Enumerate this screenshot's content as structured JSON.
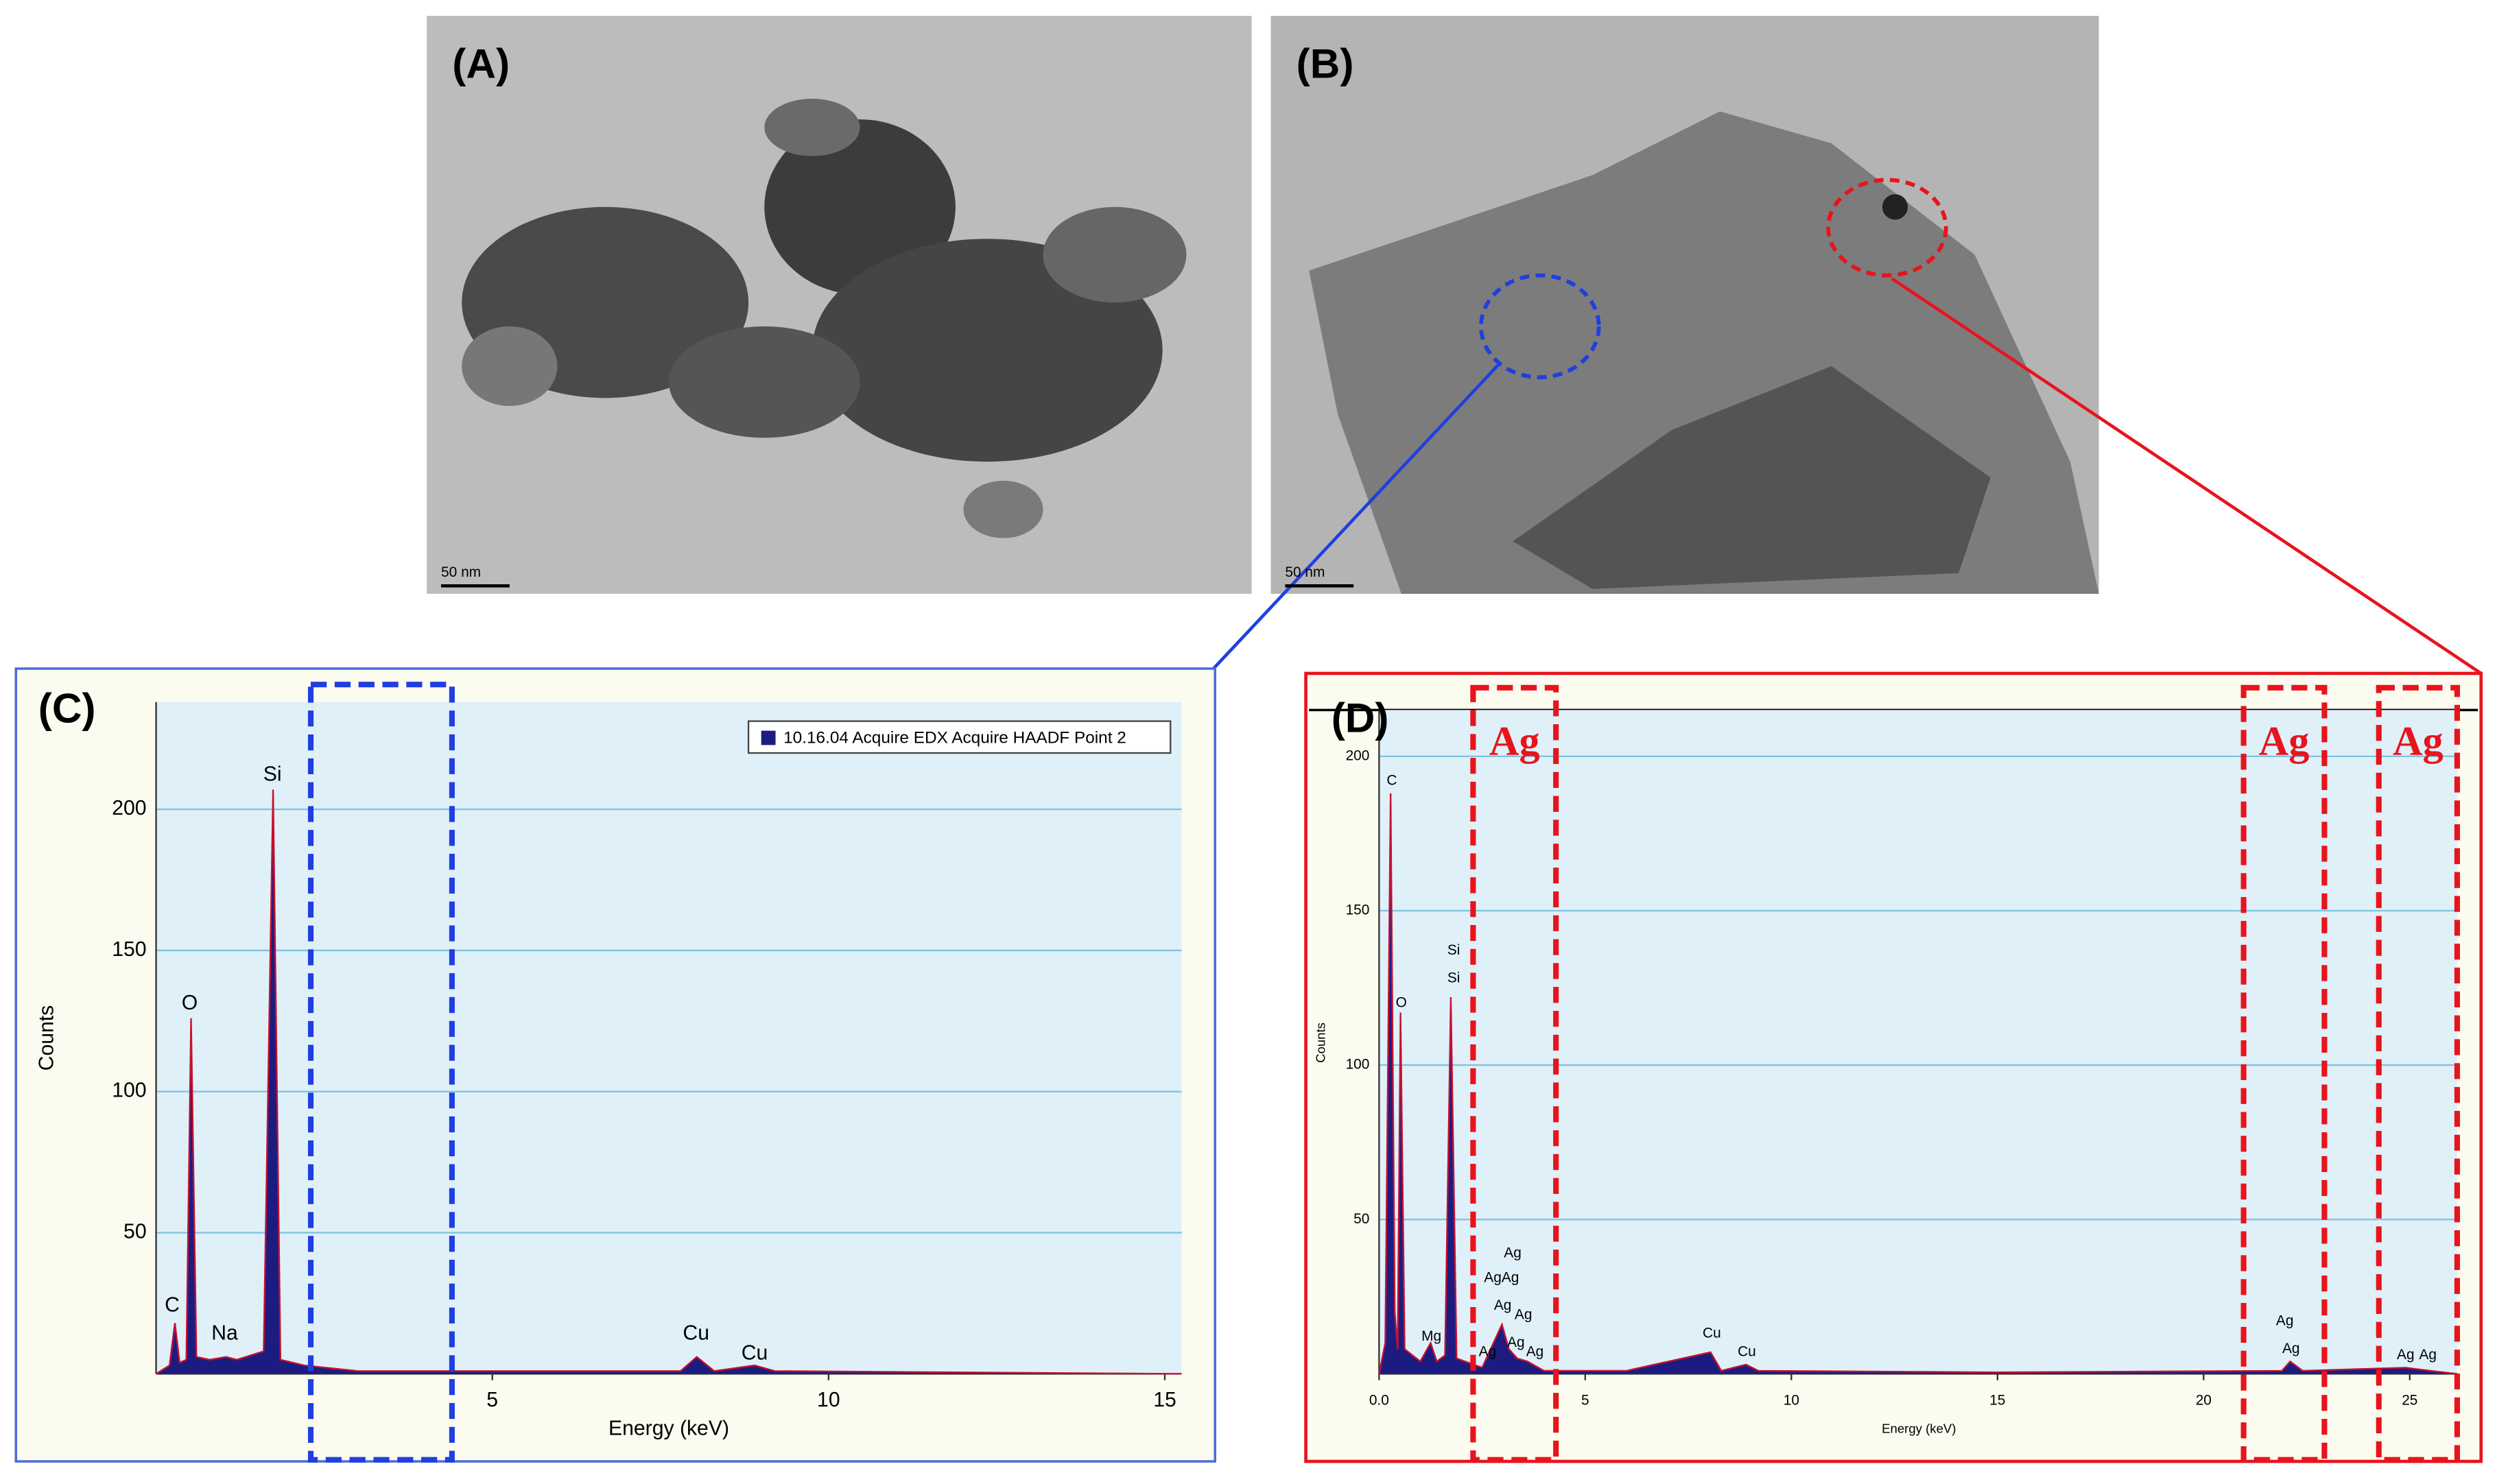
{
  "images": [
    {
      "label": "(A)",
      "scale_bar": "50 nm"
    },
    {
      "label": "(B)",
      "scale_bar": "50 nm"
    }
  ],
  "chart_data": [
    {
      "type": "line",
      "panel": "(C)",
      "x_label": "Energy (keV)",
      "y_label": "Counts",
      "grid": true,
      "legend": "upper right",
      "x": [
        0,
        0.2,
        0.28,
        0.35,
        0.45,
        0.52,
        0.6,
        0.8,
        1.04,
        1.2,
        1.6,
        1.74,
        1.85,
        2.2,
        3,
        5,
        7.8,
        8.04,
        8.3,
        8.9,
        9.2,
        15.25
      ],
      "series": [
        {
          "name": "10.16.04 Acquire EDX Acquire HAADF Point 2",
          "color": "#1c1c80",
          "values": [
            0,
            3,
            18,
            4,
            5,
            126,
            6,
            5,
            6,
            5,
            8,
            207,
            5,
            3,
            1,
            1,
            1,
            6,
            1,
            3,
            1,
            0
          ]
        }
      ],
      "xlim": [
        0,
        15.25
      ],
      "xticks": [
        5,
        10,
        15
      ],
      "ylim": [
        0,
        238
      ],
      "yticks": [
        50,
        100,
        150,
        200
      ],
      "annotations": [
        {
          "text": "C",
          "x": 0.24,
          "y": 24
        },
        {
          "text": "O",
          "x": 0.5,
          "y": 131
        },
        {
          "text": "Na",
          "x": 1.02,
          "y": 14
        },
        {
          "text": "Si",
          "x": 1.73,
          "y": 212
        },
        {
          "text": "Cu",
          "x": 8.03,
          "y": 14
        },
        {
          "text": "Cu",
          "x": 8.9,
          "y": 7
        }
      ],
      "regions": [
        {
          "x": [
            2.3,
            4.4
          ],
          "color": "#1f3fe0"
        }
      ]
    },
    {
      "type": "line",
      "panel": "(D)",
      "x_label": "Energy (keV)",
      "y_label": "Counts",
      "grid": true,
      "x": [
        0,
        0.15,
        0.28,
        0.38,
        0.45,
        0.52,
        0.62,
        1.0,
        1.25,
        1.4,
        1.6,
        1.74,
        1.88,
        2.5,
        2.98,
        3.15,
        3.35,
        3.6,
        4.0,
        6,
        8.04,
        8.3,
        8.9,
        9.2,
        15,
        21.9,
        22.1,
        22.4,
        24.9,
        25.5,
        26.15
      ],
      "series": [
        {
          "color": "#1c1c80",
          "values": [
            0,
            10,
            188,
            20,
            8,
            117,
            8,
            4,
            10,
            4,
            6,
            122,
            5,
            2,
            16,
            8,
            5,
            4,
            1,
            1,
            7,
            1,
            3,
            1,
            0.5,
            1,
            4,
            1,
            2,
            1,
            0
          ]
        }
      ],
      "xlim": [
        0,
        26.15
      ],
      "xticks": [
        {
          "value": 0,
          "label": "0.0"
        },
        5,
        10,
        15,
        20,
        25
      ],
      "ylim": [
        0,
        215
      ],
      "yticks": [
        50,
        100,
        150,
        200
      ],
      "annotations": [
        {
          "text": "C",
          "x": 0.31,
          "y": 192
        },
        {
          "text": "O",
          "x": 0.54,
          "y": 120
        },
        {
          "text": "Si",
          "x": 1.81,
          "y": 137
        },
        {
          "text": "Si",
          "x": 1.81,
          "y": 128
        },
        {
          "text": "Mg",
          "x": 1.27,
          "y": 12
        },
        {
          "text": "Ag",
          "x": 3.24,
          "y": 39
        },
        {
          "text": "AgAg",
          "x": 2.97,
          "y": 31
        },
        {
          "text": "Ag",
          "x": 3.0,
          "y": 22
        },
        {
          "text": "Ag",
          "x": 3.5,
          "y": 19
        },
        {
          "text": "Ag",
          "x": 2.63,
          "y": 7
        },
        {
          "text": "Ag",
          "x": 3.32,
          "y": 10
        },
        {
          "text": "Ag",
          "x": 3.78,
          "y": 7
        },
        {
          "text": "Cu",
          "x": 8.07,
          "y": 13
        },
        {
          "text": "Cu",
          "x": 8.92,
          "y": 7
        },
        {
          "text": "Ag",
          "x": 21.97,
          "y": 17
        },
        {
          "text": "Ag",
          "x": 22.12,
          "y": 8
        },
        {
          "text": "Ag",
          "x": 24.9,
          "y": 6
        },
        {
          "text": "Ag",
          "x": 25.44,
          "y": 6
        }
      ],
      "regions": [
        {
          "label": "Ag",
          "x": [
            2.28,
            4.29
          ],
          "color": "#e8141c"
        },
        {
          "label": "Ag",
          "x": [
            20.97,
            22.93
          ],
          "color": "#e8141c"
        },
        {
          "label": "Ag",
          "x": [
            24.25,
            26.15
          ],
          "color": "#e8141c"
        }
      ]
    }
  ]
}
